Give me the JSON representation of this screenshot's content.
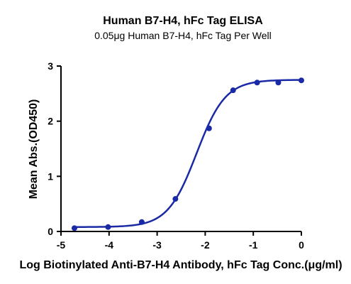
{
  "chart_data": {
    "type": "scatter",
    "title": "Human B7-H4, hFc Tag ELISA",
    "subtitle": "0.05μg Human B7-H4, hFc Tag Per Well",
    "xlabel": "Log Biotinylated Anti-B7-H4 Antibody, hFc Tag Conc.(μg/ml)",
    "ylabel": "Mean Abs.(OD450)",
    "xlim": [
      -5,
      0
    ],
    "ylim": [
      0,
      3
    ],
    "xticks": [
      "-5",
      "-4",
      "-3",
      "-2",
      "-1",
      "0"
    ],
    "yticks": [
      "0",
      "1",
      "2",
      "3"
    ],
    "grid": false,
    "color": "#1a2aa6",
    "x": [
      -4.72,
      -4.02,
      -3.32,
      -2.62,
      -1.92,
      -1.42,
      -0.92,
      -0.48,
      0.0
    ],
    "y": [
      0.06,
      0.08,
      0.17,
      0.59,
      1.87,
      2.56,
      2.7,
      2.7,
      2.74
    ],
    "fit_curve": {
      "model": "4PL",
      "bottom": 0.08,
      "top": 2.75,
      "log_ec50": -2.18,
      "hill_slope": 1.45
    }
  }
}
